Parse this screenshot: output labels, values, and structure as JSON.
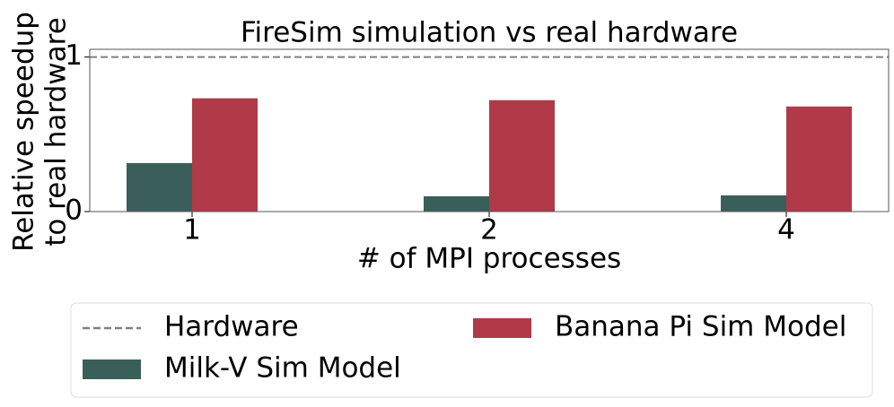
{
  "chart_data": {
    "type": "bar",
    "title": "FireSim simulation vs real hardware",
    "xlabel": "# of MPI processes",
    "ylabel": [
      "Relative speedup",
      "to real hardware"
    ],
    "categories": [
      "1",
      "2",
      "4"
    ],
    "series": [
      {
        "name": "Milk-V Sim Model",
        "color": "#3a5f5a",
        "values": [
          0.314,
          0.099,
          0.105
        ]
      },
      {
        "name": "Banana Pi Sim Model",
        "color": "#b03a48",
        "values": [
          0.733,
          0.721,
          0.68
        ]
      }
    ],
    "reference_lines": [
      {
        "name": "Hardware",
        "value": 1,
        "color": "#808080",
        "style": "dashed"
      }
    ],
    "ylim": [
      0,
      1.05
    ],
    "yticks": [
      0,
      1
    ],
    "grid": false,
    "legend_position": "bottom",
    "legend_ncol": 2
  }
}
